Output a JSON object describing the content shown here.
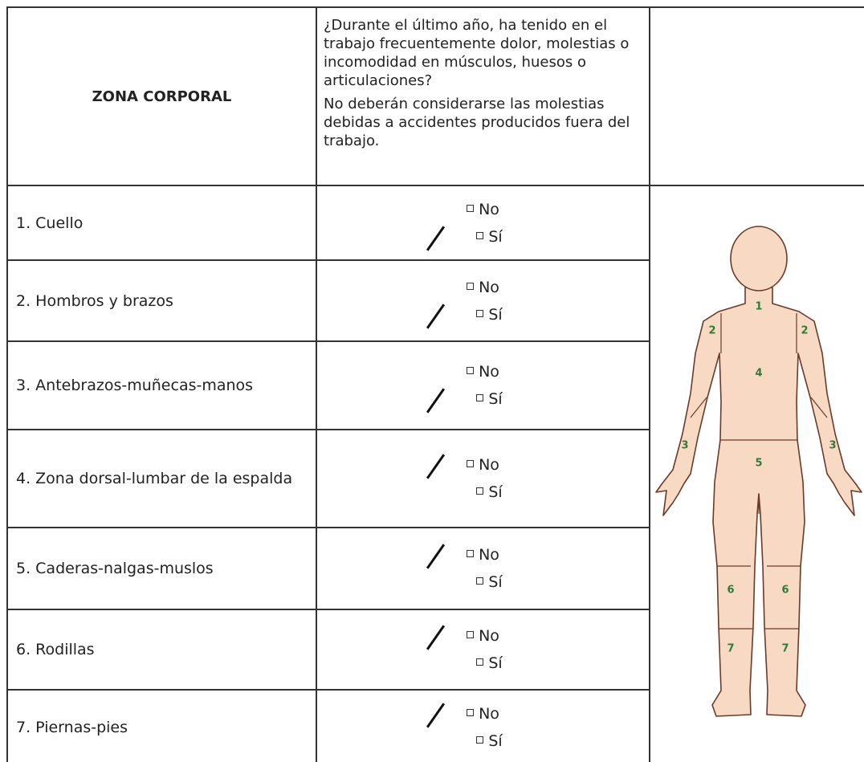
{
  "table": {
    "header": {
      "zone": "ZONA CORPORAL",
      "question": "¿Durante el último año, ha tenido en el trabajo frecuentemente dolor, molestias o incomodidad en músculos, huesos o articulaciones?",
      "note": "No deberán considerarse las molestias debidas a accidentes producidos fuera del trabajo."
    },
    "options": [
      "No",
      "Sí"
    ],
    "rows": [
      {
        "zone": "1. Cuello",
        "marked": 1
      },
      {
        "zone": "2. Hombros y brazos",
        "marked": 1
      },
      {
        "zone": "3. Antebrazos-muñecas-manos",
        "marked": 1
      },
      {
        "zone": "4. Zona dorsal-lumbar de la espalda",
        "marked": 0
      },
      {
        "zone": "5. Caderas-nalgas-muslos",
        "marked": 0
      },
      {
        "zone": "6. Rodillas",
        "marked": 0
      },
      {
        "zone": "7. Piernas-pies",
        "marked": 0
      }
    ]
  },
  "figure": {
    "labels": [
      "1",
      "2",
      "2",
      "4",
      "3",
      "3",
      "5",
      "6",
      "6",
      "7",
      "7"
    ]
  }
}
